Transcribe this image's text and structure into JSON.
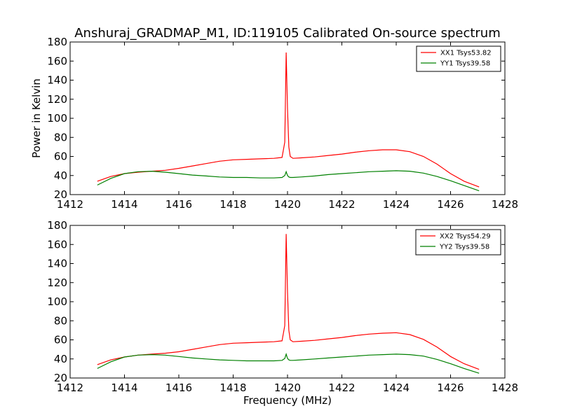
{
  "figure_title": "Anshuraj_GRADMAP_M1, ID:119105 Calibrated On-source spectrum",
  "chart_data": [
    {
      "type": "line",
      "title": "",
      "xlabel": "",
      "ylabel": "Power in Kelvin",
      "xlim": [
        1412,
        1428
      ],
      "ylim": [
        20,
        180
      ],
      "xticks": [
        1412,
        1414,
        1416,
        1418,
        1420,
        1422,
        1424,
        1426,
        1428
      ],
      "yticks": [
        20,
        40,
        60,
        80,
        100,
        120,
        140,
        160,
        180
      ],
      "grid": false,
      "legend_position": "top-right",
      "series": [
        {
          "name": "XX1 Tsys53.82",
          "color": "#ff0000",
          "x": [
            1413.0,
            1413.5,
            1414.0,
            1414.5,
            1415.0,
            1415.5,
            1416.0,
            1416.5,
            1417.0,
            1417.5,
            1418.0,
            1418.5,
            1419.0,
            1419.5,
            1419.8,
            1419.9,
            1419.95,
            1420.0,
            1420.05,
            1420.1,
            1420.2,
            1420.5,
            1421.0,
            1421.5,
            1422.0,
            1422.5,
            1423.0,
            1423.5,
            1424.0,
            1424.5,
            1425.0,
            1425.5,
            1426.0,
            1426.5,
            1427.05
          ],
          "y": [
            34,
            39,
            42,
            43.5,
            44.5,
            45.5,
            47.5,
            50,
            52.5,
            55,
            56.5,
            57,
            57.5,
            58,
            59,
            75,
            169,
            110,
            70,
            60,
            58,
            58.5,
            59.5,
            61,
            62.5,
            64.5,
            66,
            67,
            67,
            65,
            60,
            52,
            42,
            34,
            28
          ]
        },
        {
          "name": "YY1 Tsys39.58",
          "color": "#008000",
          "x": [
            1413.0,
            1413.5,
            1414.0,
            1414.5,
            1415.0,
            1415.5,
            1416.0,
            1416.5,
            1417.0,
            1417.5,
            1418.0,
            1418.5,
            1419.0,
            1419.5,
            1419.8,
            1419.9,
            1419.95,
            1420.0,
            1420.05,
            1420.1,
            1420.2,
            1420.5,
            1421.0,
            1421.5,
            1422.0,
            1422.5,
            1423.0,
            1423.5,
            1424.0,
            1424.5,
            1425.0,
            1425.5,
            1426.0,
            1426.5,
            1427.05
          ],
          "y": [
            30,
            37,
            42,
            44,
            44.5,
            43.5,
            42,
            40.5,
            39.5,
            38.5,
            38,
            38,
            37.5,
            37.5,
            38,
            40,
            44,
            40,
            38.5,
            38,
            38,
            38.5,
            39.5,
            41,
            42,
            43,
            44,
            44.5,
            45,
            44.5,
            42.5,
            39,
            34.5,
            29.5,
            24
          ]
        }
      ]
    },
    {
      "type": "line",
      "title": "",
      "xlabel": "Frequency (MHz)",
      "ylabel": "",
      "xlim": [
        1412,
        1428
      ],
      "ylim": [
        20,
        180
      ],
      "xticks": [
        1412,
        1414,
        1416,
        1418,
        1420,
        1422,
        1424,
        1426,
        1428
      ],
      "yticks": [
        20,
        40,
        60,
        80,
        100,
        120,
        140,
        160,
        180
      ],
      "grid": false,
      "legend_position": "top-right",
      "series": [
        {
          "name": "XX2 Tsys54.29",
          "color": "#ff0000",
          "x": [
            1413.0,
            1413.5,
            1414.0,
            1414.5,
            1415.0,
            1415.5,
            1416.0,
            1416.5,
            1417.0,
            1417.5,
            1418.0,
            1418.5,
            1419.0,
            1419.5,
            1419.8,
            1419.9,
            1419.95,
            1420.0,
            1420.05,
            1420.1,
            1420.2,
            1420.5,
            1421.0,
            1421.5,
            1422.0,
            1422.5,
            1423.0,
            1423.5,
            1424.0,
            1424.5,
            1425.0,
            1425.5,
            1426.0,
            1426.5,
            1427.05
          ],
          "y": [
            34,
            39,
            42,
            44,
            45,
            46,
            47.5,
            50,
            52.5,
            55,
            56.5,
            57,
            57.5,
            58,
            59,
            75,
            171,
            110,
            70,
            60,
            58,
            58.5,
            59.5,
            61,
            62.5,
            64.5,
            66,
            67,
            67.5,
            65.5,
            60.5,
            52.5,
            42.5,
            35,
            29
          ]
        },
        {
          "name": "YY2 Tsys39.58",
          "color": "#008000",
          "x": [
            1413.0,
            1413.5,
            1414.0,
            1414.5,
            1415.0,
            1415.5,
            1416.0,
            1416.5,
            1417.0,
            1417.5,
            1418.0,
            1418.5,
            1419.0,
            1419.5,
            1419.8,
            1419.9,
            1419.95,
            1420.0,
            1420.05,
            1420.1,
            1420.2,
            1420.5,
            1421.0,
            1421.5,
            1422.0,
            1422.5,
            1423.0,
            1423.5,
            1424.0,
            1424.5,
            1425.0,
            1425.5,
            1426.0,
            1426.5,
            1427.05
          ],
          "y": [
            30,
            37,
            42,
            44,
            44.5,
            44,
            42.5,
            41,
            40,
            39,
            38.5,
            38,
            38,
            38,
            38.5,
            40.5,
            45,
            40.5,
            39,
            38.5,
            38.5,
            39,
            40,
            41,
            42,
            43,
            44,
            44.5,
            45,
            44.5,
            43,
            39.5,
            35,
            30,
            25
          ]
        }
      ]
    }
  ]
}
